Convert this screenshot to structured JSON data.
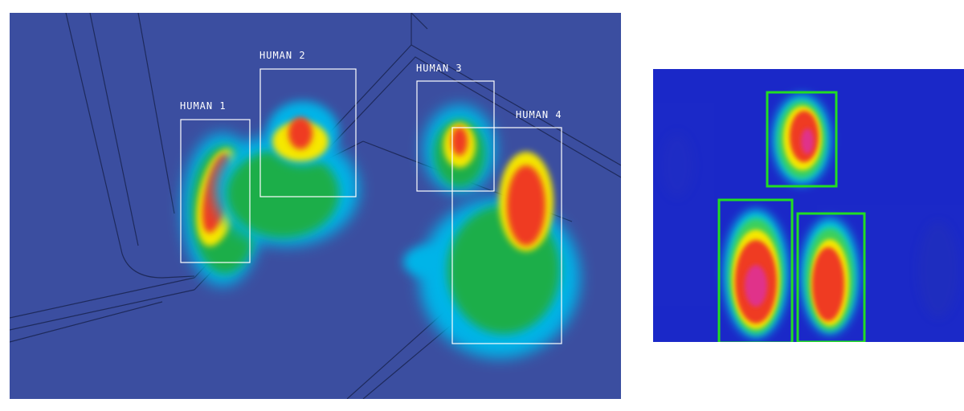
{
  "left_view": {
    "detections": [
      {
        "label": "HUMAN 1"
      },
      {
        "label": "HUMAN 2"
      },
      {
        "label": "HUMAN 3"
      },
      {
        "label": "HUMAN 4"
      }
    ],
    "box_color": "#ffffff",
    "background_color": "#3b4ea0"
  },
  "right_view": {
    "detection_count": 3,
    "box_color": "#22dd22",
    "background_color": "#1b29c8"
  },
  "heat_colors": [
    "#00b4e8",
    "#1fae4a",
    "#f5e800",
    "#ef3b24",
    "#e0308a"
  ]
}
